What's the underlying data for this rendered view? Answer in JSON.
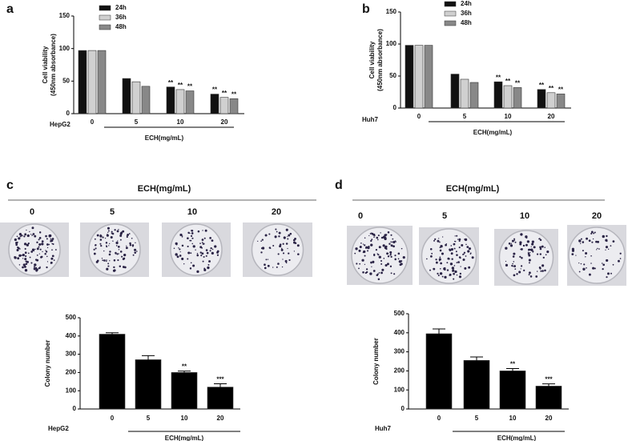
{
  "chart_data": [
    {
      "type": "bar",
      "panel": "a",
      "y_label": [
        "Cell viability",
        "(450nm absorbance)"
      ],
      "cell_line": "HepG2",
      "x_label": "ECH(mg/mL)",
      "categories": [
        "0",
        "5",
        "10",
        "20"
      ],
      "ylim": [
        0,
        150
      ],
      "yticks": [
        0,
        50,
        100,
        150
      ],
      "series": [
        {
          "name": "24h",
          "color": "#111111",
          "values": [
            97,
            54,
            41,
            30
          ],
          "annotations": [
            null,
            null,
            "**",
            "**"
          ]
        },
        {
          "name": "36h",
          "color": "#d0d0d0",
          "values": [
            97,
            49,
            37,
            25
          ],
          "annotations": [
            null,
            null,
            "**",
            "**"
          ]
        },
        {
          "name": "48h",
          "color": "#888888",
          "values": [
            97,
            42,
            35,
            23
          ],
          "annotations": [
            null,
            null,
            "**",
            "**"
          ]
        }
      ]
    },
    {
      "type": "bar",
      "panel": "b",
      "y_label": [
        "Cell viability",
        "(450nm absorbance)"
      ],
      "cell_line": "Huh7",
      "x_label": "ECH(mg/mL)",
      "categories": [
        "0",
        "5",
        "10",
        "20"
      ],
      "ylim": [
        0,
        150
      ],
      "yticks": [
        0,
        50,
        100,
        150
      ],
      "series": [
        {
          "name": "24h",
          "color": "#111111",
          "values": [
            98,
            53,
            41,
            29
          ],
          "annotations": [
            null,
            null,
            "**",
            "**"
          ]
        },
        {
          "name": "36h",
          "color": "#d0d0d0",
          "values": [
            98,
            45,
            35,
            24
          ],
          "annotations": [
            null,
            null,
            "**",
            "**"
          ]
        },
        {
          "name": "48h",
          "color": "#888888",
          "values": [
            98,
            40,
            32,
            22
          ],
          "annotations": [
            null,
            null,
            "**",
            "**"
          ]
        }
      ]
    },
    {
      "type": "bar",
      "y_label": [
        "Colony number"
      ],
      "cell_line": "HepG2",
      "x_label": "ECH(mg/mL)",
      "categories": [
        "0",
        "5",
        "10",
        "20"
      ],
      "ylim": [
        0,
        500
      ],
      "yticks": [
        0,
        100,
        200,
        300,
        400,
        500
      ],
      "color": "#000000",
      "values": [
        410,
        270,
        200,
        120
      ],
      "errors": [
        8,
        22,
        8,
        18
      ],
      "annotations": [
        null,
        null,
        "**",
        "***"
      ]
    },
    {
      "type": "bar",
      "y_label": [
        "Colony number"
      ],
      "cell_line": "Huh7",
      "x_label": "ECH(mg/mL)",
      "categories": [
        "0",
        "5",
        "10",
        "20"
      ],
      "ylim": [
        0,
        500
      ],
      "yticks": [
        0,
        100,
        200,
        300,
        400,
        500
      ],
      "color": "#000000",
      "values": [
        395,
        255,
        200,
        120
      ],
      "errors": [
        25,
        18,
        12,
        12
      ],
      "annotations": [
        null,
        null,
        "**",
        "***"
      ]
    }
  ],
  "photo_panels": [
    {
      "label": "c",
      "title": "ECH(mg/mL)",
      "doses": [
        "0",
        "5",
        "10",
        "20"
      ]
    },
    {
      "label": "d",
      "title": "ECH(mg/mL)",
      "doses": [
        "0",
        "5",
        "10",
        "20"
      ]
    }
  ]
}
